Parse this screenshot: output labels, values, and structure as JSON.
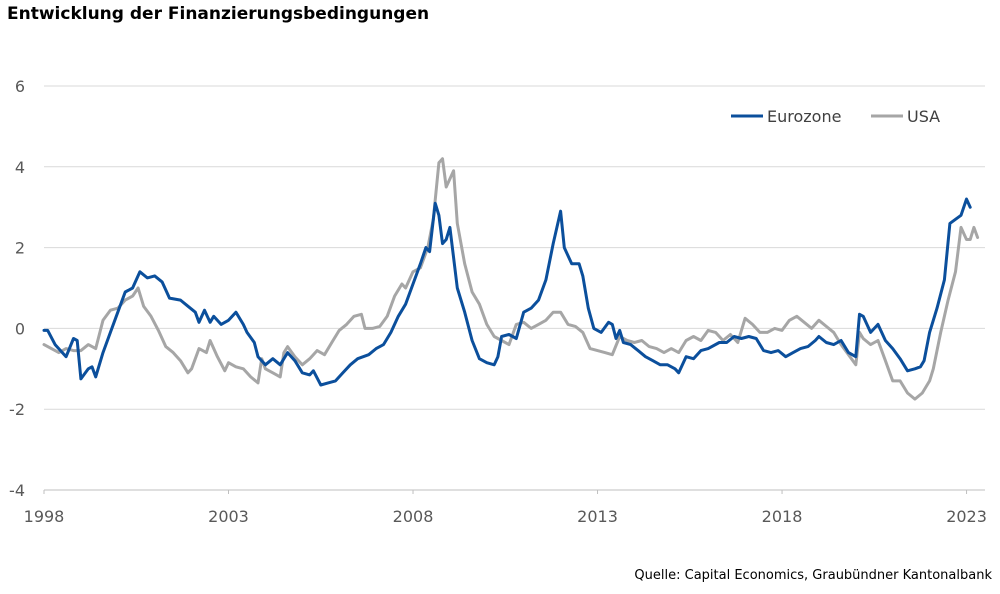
{
  "chart_data": {
    "type": "line",
    "title": "Entwicklung der Finanzierungsbedingungen",
    "source": "Quelle: Capital Economics, Graubündner Kantonalbank",
    "xlim": [
      1998.0,
      2023.5
    ],
    "ylim": [
      -4,
      6
    ],
    "xticks": [
      1998,
      2003,
      2008,
      2013,
      2018,
      2023
    ],
    "xtick_labels": [
      "1998",
      "2003",
      "2008",
      "2013",
      "2018",
      "2023"
    ],
    "yticks": [
      -4,
      -2,
      0,
      2,
      4,
      6
    ],
    "ytick_labels": [
      "-4",
      "-2",
      "0",
      "2",
      "4",
      "6"
    ],
    "grid": "horizontal",
    "legend_position": "top-right",
    "series": [
      {
        "name": "Eurozone",
        "color": "#0b4f9c",
        "points": [
          [
            1998.0,
            -0.05
          ],
          [
            1998.1,
            -0.05
          ],
          [
            1998.3,
            -0.4
          ],
          [
            1998.6,
            -0.7
          ],
          [
            1998.8,
            -0.25
          ],
          [
            1998.9,
            -0.3
          ],
          [
            1999.0,
            -1.25
          ],
          [
            1999.2,
            -1.0
          ],
          [
            1999.3,
            -0.95
          ],
          [
            1999.4,
            -1.2
          ],
          [
            1999.6,
            -0.6
          ],
          [
            1999.8,
            -0.1
          ],
          [
            2000.0,
            0.4
          ],
          [
            2000.2,
            0.9
          ],
          [
            2000.4,
            1.0
          ],
          [
            2000.6,
            1.4
          ],
          [
            2000.8,
            1.25
          ],
          [
            2001.0,
            1.3
          ],
          [
            2001.2,
            1.15
          ],
          [
            2001.4,
            0.75
          ],
          [
            2001.7,
            0.7
          ],
          [
            2001.9,
            0.55
          ],
          [
            2002.1,
            0.4
          ],
          [
            2002.2,
            0.15
          ],
          [
            2002.35,
            0.45
          ],
          [
            2002.5,
            0.15
          ],
          [
            2002.6,
            0.3
          ],
          [
            2002.8,
            0.1
          ],
          [
            2003.0,
            0.2
          ],
          [
            2003.2,
            0.4
          ],
          [
            2003.4,
            0.1
          ],
          [
            2003.5,
            -0.1
          ],
          [
            2003.7,
            -0.35
          ],
          [
            2003.8,
            -0.7
          ],
          [
            2004.0,
            -0.9
          ],
          [
            2004.2,
            -0.75
          ],
          [
            2004.4,
            -0.9
          ],
          [
            2004.6,
            -0.6
          ],
          [
            2004.8,
            -0.8
          ],
          [
            2005.0,
            -1.1
          ],
          [
            2005.2,
            -1.15
          ],
          [
            2005.3,
            -1.05
          ],
          [
            2005.5,
            -1.4
          ],
          [
            2005.7,
            -1.35
          ],
          [
            2005.9,
            -1.3
          ],
          [
            2006.1,
            -1.1
          ],
          [
            2006.3,
            -0.9
          ],
          [
            2006.5,
            -0.75
          ],
          [
            2006.8,
            -0.65
          ],
          [
            2007.0,
            -0.5
          ],
          [
            2007.2,
            -0.4
          ],
          [
            2007.4,
            -0.1
          ],
          [
            2007.6,
            0.3
          ],
          [
            2007.8,
            0.6
          ],
          [
            2008.0,
            1.1
          ],
          [
            2008.2,
            1.6
          ],
          [
            2008.35,
            2.0
          ],
          [
            2008.45,
            1.9
          ],
          [
            2008.6,
            3.1
          ],
          [
            2008.7,
            2.8
          ],
          [
            2008.8,
            2.1
          ],
          [
            2008.9,
            2.2
          ],
          [
            2009.0,
            2.5
          ],
          [
            2009.2,
            1.0
          ],
          [
            2009.4,
            0.4
          ],
          [
            2009.6,
            -0.3
          ],
          [
            2009.8,
            -0.75
          ],
          [
            2010.0,
            -0.85
          ],
          [
            2010.2,
            -0.9
          ],
          [
            2010.3,
            -0.7
          ],
          [
            2010.4,
            -0.2
          ],
          [
            2010.6,
            -0.15
          ],
          [
            2010.8,
            -0.25
          ],
          [
            2011.0,
            0.4
          ],
          [
            2011.2,
            0.5
          ],
          [
            2011.4,
            0.7
          ],
          [
            2011.6,
            1.2
          ],
          [
            2011.8,
            2.1
          ],
          [
            2012.0,
            2.9
          ],
          [
            2012.1,
            2.0
          ],
          [
            2012.3,
            1.6
          ],
          [
            2012.5,
            1.6
          ],
          [
            2012.6,
            1.3
          ],
          [
            2012.75,
            0.5
          ],
          [
            2012.9,
            0.0
          ],
          [
            2013.1,
            -0.1
          ],
          [
            2013.3,
            0.15
          ],
          [
            2013.4,
            0.1
          ],
          [
            2013.5,
            -0.25
          ],
          [
            2013.6,
            -0.05
          ],
          [
            2013.7,
            -0.35
          ],
          [
            2013.9,
            -0.4
          ],
          [
            2014.1,
            -0.55
          ],
          [
            2014.3,
            -0.7
          ],
          [
            2014.5,
            -0.8
          ],
          [
            2014.7,
            -0.9
          ],
          [
            2014.9,
            -0.9
          ],
          [
            2015.1,
            -1.0
          ],
          [
            2015.2,
            -1.1
          ],
          [
            2015.4,
            -0.7
          ],
          [
            2015.6,
            -0.75
          ],
          [
            2015.8,
            -0.55
          ],
          [
            2016.0,
            -0.5
          ],
          [
            2016.3,
            -0.35
          ],
          [
            2016.5,
            -0.35
          ],
          [
            2016.7,
            -0.2
          ],
          [
            2016.9,
            -0.25
          ],
          [
            2017.1,
            -0.2
          ],
          [
            2017.3,
            -0.25
          ],
          [
            2017.5,
            -0.55
          ],
          [
            2017.7,
            -0.6
          ],
          [
            2017.9,
            -0.55
          ],
          [
            2018.1,
            -0.7
          ],
          [
            2018.3,
            -0.6
          ],
          [
            2018.5,
            -0.5
          ],
          [
            2018.7,
            -0.45
          ],
          [
            2018.9,
            -0.3
          ],
          [
            2019.0,
            -0.2
          ],
          [
            2019.2,
            -0.35
          ],
          [
            2019.4,
            -0.4
          ],
          [
            2019.6,
            -0.3
          ],
          [
            2019.8,
            -0.6
          ],
          [
            2020.0,
            -0.7
          ],
          [
            2020.1,
            0.35
          ],
          [
            2020.2,
            0.3
          ],
          [
            2020.4,
            -0.1
          ],
          [
            2020.6,
            0.1
          ],
          [
            2020.8,
            -0.3
          ],
          [
            2021.0,
            -0.5
          ],
          [
            2021.2,
            -0.75
          ],
          [
            2021.4,
            -1.05
          ],
          [
            2021.6,
            -1.0
          ],
          [
            2021.75,
            -0.95
          ],
          [
            2021.85,
            -0.8
          ],
          [
            2022.0,
            -0.1
          ],
          [
            2022.2,
            0.5
          ],
          [
            2022.4,
            1.2
          ],
          [
            2022.55,
            2.6
          ],
          [
            2022.7,
            2.7
          ],
          [
            2022.85,
            2.8
          ],
          [
            2023.0,
            3.2
          ],
          [
            2023.1,
            3.0
          ]
        ]
      },
      {
        "name": "USA",
        "color": "#a6a6a6",
        "points": [
          [
            1998.0,
            -0.4
          ],
          [
            1998.2,
            -0.5
          ],
          [
            1998.4,
            -0.6
          ],
          [
            1998.6,
            -0.5
          ],
          [
            1998.8,
            -0.55
          ],
          [
            1999.0,
            -0.55
          ],
          [
            1999.2,
            -0.4
          ],
          [
            1999.4,
            -0.5
          ],
          [
            1999.6,
            0.2
          ],
          [
            1999.8,
            0.45
          ],
          [
            2000.0,
            0.5
          ],
          [
            2000.2,
            0.7
          ],
          [
            2000.4,
            0.8
          ],
          [
            2000.55,
            1.0
          ],
          [
            2000.7,
            0.55
          ],
          [
            2000.9,
            0.3
          ],
          [
            2001.1,
            -0.05
          ],
          [
            2001.3,
            -0.45
          ],
          [
            2001.5,
            -0.6
          ],
          [
            2001.7,
            -0.8
          ],
          [
            2001.9,
            -1.1
          ],
          [
            2002.0,
            -1.0
          ],
          [
            2002.2,
            -0.5
          ],
          [
            2002.4,
            -0.6
          ],
          [
            2002.5,
            -0.3
          ],
          [
            2002.7,
            -0.7
          ],
          [
            2002.9,
            -1.05
          ],
          [
            2003.0,
            -0.85
          ],
          [
            2003.2,
            -0.95
          ],
          [
            2003.4,
            -1.0
          ],
          [
            2003.6,
            -1.2
          ],
          [
            2003.8,
            -1.35
          ],
          [
            2003.9,
            -0.75
          ],
          [
            2004.0,
            -1.0
          ],
          [
            2004.2,
            -1.1
          ],
          [
            2004.4,
            -1.2
          ],
          [
            2004.5,
            -0.6
          ],
          [
            2004.6,
            -0.45
          ],
          [
            2004.8,
            -0.7
          ],
          [
            2005.0,
            -0.9
          ],
          [
            2005.2,
            -0.75
          ],
          [
            2005.4,
            -0.55
          ],
          [
            2005.6,
            -0.65
          ],
          [
            2005.8,
            -0.35
          ],
          [
            2006.0,
            -0.05
          ],
          [
            2006.2,
            0.1
          ],
          [
            2006.4,
            0.3
          ],
          [
            2006.6,
            0.35
          ],
          [
            2006.7,
            0.0
          ],
          [
            2006.9,
            0.0
          ],
          [
            2007.1,
            0.05
          ],
          [
            2007.3,
            0.3
          ],
          [
            2007.5,
            0.8
          ],
          [
            2007.7,
            1.1
          ],
          [
            2007.8,
            1.0
          ],
          [
            2008.0,
            1.4
          ],
          [
            2008.2,
            1.5
          ],
          [
            2008.4,
            2.0
          ],
          [
            2008.55,
            2.7
          ],
          [
            2008.7,
            4.1
          ],
          [
            2008.8,
            4.2
          ],
          [
            2008.9,
            3.5
          ],
          [
            2009.1,
            3.9
          ],
          [
            2009.2,
            2.6
          ],
          [
            2009.4,
            1.6
          ],
          [
            2009.6,
            0.9
          ],
          [
            2009.8,
            0.6
          ],
          [
            2010.0,
            0.1
          ],
          [
            2010.2,
            -0.2
          ],
          [
            2010.4,
            -0.3
          ],
          [
            2010.6,
            -0.4
          ],
          [
            2010.8,
            0.1
          ],
          [
            2011.0,
            0.15
          ],
          [
            2011.2,
            0.0
          ],
          [
            2011.4,
            0.1
          ],
          [
            2011.6,
            0.2
          ],
          [
            2011.8,
            0.4
          ],
          [
            2012.0,
            0.4
          ],
          [
            2012.2,
            0.1
          ],
          [
            2012.4,
            0.05
          ],
          [
            2012.6,
            -0.1
          ],
          [
            2012.8,
            -0.5
          ],
          [
            2013.0,
            -0.55
          ],
          [
            2013.2,
            -0.6
          ],
          [
            2013.4,
            -0.65
          ],
          [
            2013.6,
            -0.2
          ],
          [
            2013.8,
            -0.3
          ],
          [
            2014.0,
            -0.35
          ],
          [
            2014.2,
            -0.3
          ],
          [
            2014.4,
            -0.45
          ],
          [
            2014.6,
            -0.5
          ],
          [
            2014.8,
            -0.6
          ],
          [
            2015.0,
            -0.5
          ],
          [
            2015.2,
            -0.6
          ],
          [
            2015.4,
            -0.3
          ],
          [
            2015.6,
            -0.2
          ],
          [
            2015.8,
            -0.3
          ],
          [
            2016.0,
            -0.05
          ],
          [
            2016.2,
            -0.1
          ],
          [
            2016.4,
            -0.3
          ],
          [
            2016.6,
            -0.15
          ],
          [
            2016.8,
            -0.35
          ],
          [
            2017.0,
            0.25
          ],
          [
            2017.2,
            0.1
          ],
          [
            2017.4,
            -0.1
          ],
          [
            2017.6,
            -0.1
          ],
          [
            2017.8,
            0.0
          ],
          [
            2018.0,
            -0.05
          ],
          [
            2018.2,
            0.2
          ],
          [
            2018.4,
            0.3
          ],
          [
            2018.6,
            0.15
          ],
          [
            2018.8,
            0.0
          ],
          [
            2019.0,
            0.2
          ],
          [
            2019.2,
            0.05
          ],
          [
            2019.4,
            -0.1
          ],
          [
            2019.6,
            -0.4
          ],
          [
            2019.8,
            -0.65
          ],
          [
            2020.0,
            -0.9
          ],
          [
            2020.1,
            -0.1
          ],
          [
            2020.2,
            -0.25
          ],
          [
            2020.4,
            -0.4
          ],
          [
            2020.6,
            -0.3
          ],
          [
            2020.8,
            -0.8
          ],
          [
            2021.0,
            -1.3
          ],
          [
            2021.2,
            -1.3
          ],
          [
            2021.4,
            -1.6
          ],
          [
            2021.6,
            -1.75
          ],
          [
            2021.8,
            -1.6
          ],
          [
            2022.0,
            -1.3
          ],
          [
            2022.1,
            -1.0
          ],
          [
            2022.3,
            -0.1
          ],
          [
            2022.5,
            0.7
          ],
          [
            2022.7,
            1.4
          ],
          [
            2022.85,
            2.5
          ],
          [
            2023.0,
            2.2
          ],
          [
            2023.1,
            2.2
          ],
          [
            2023.2,
            2.5
          ],
          [
            2023.3,
            2.25
          ]
        ]
      }
    ]
  }
}
